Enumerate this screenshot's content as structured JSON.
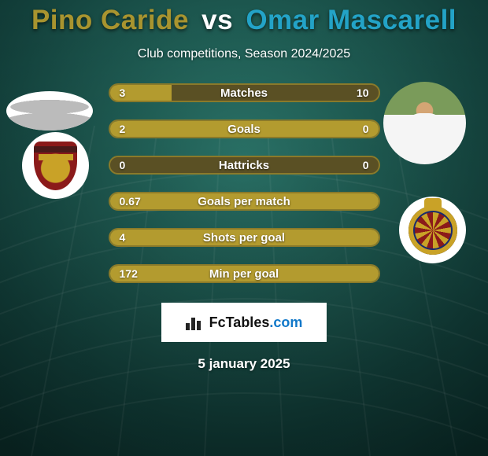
{
  "title": {
    "player1": "Pino Caride",
    "vs": "vs",
    "player2": "Omar Mascarell",
    "player1_color": "#a8942f",
    "vs_color": "#ffffff",
    "player2_color": "#23a3c7"
  },
  "subtitle": "Club competitions, Season 2024/2025",
  "date": "5 january 2025",
  "brand": {
    "name": "FcTables",
    "tld": ".com"
  },
  "background": {
    "top": "#0d3a3c",
    "mid1": "#1a5a58",
    "mid2": "#2d6b5e",
    "bottom": "#1a4a42"
  },
  "bars": {
    "track_color": "#5a5024",
    "fill_color": "#b39b2f",
    "border_color": "#8a7a2a",
    "rows": [
      {
        "label": "Matches",
        "left_val": "3",
        "right_val": "10",
        "left_pct": 23,
        "right_pct": 77
      },
      {
        "label": "Goals",
        "left_val": "2",
        "right_val": "0",
        "left_pct": 100,
        "right_pct": 0
      },
      {
        "label": "Hattricks",
        "left_val": "0",
        "right_val": "0",
        "left_pct": 0,
        "right_pct": 0
      },
      {
        "label": "Goals per match",
        "left_val": "0.67",
        "right_val": "",
        "left_pct": 100,
        "right_pct": 0
      },
      {
        "label": "Shots per goal",
        "left_val": "4",
        "right_val": "",
        "left_pct": 100,
        "right_pct": 0
      },
      {
        "label": "Min per goal",
        "left_val": "172",
        "right_val": "",
        "left_pct": 100,
        "right_pct": 0
      }
    ]
  }
}
